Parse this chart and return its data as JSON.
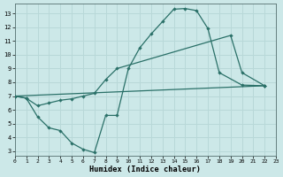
{
  "bg_color": "#cce8e8",
  "grid_color": "#b8d8d8",
  "line_color": "#2a7068",
  "xlabel": "Humidex (Indice chaleur)",
  "xlim": [
    0,
    23
  ],
  "ylim": [
    2.7,
    13.7
  ],
  "xticks": [
    0,
    1,
    2,
    3,
    4,
    5,
    6,
    7,
    8,
    9,
    10,
    11,
    12,
    13,
    14,
    15,
    16,
    17,
    18,
    19,
    20,
    21,
    22,
    23
  ],
  "yticks": [
    3,
    4,
    5,
    6,
    7,
    8,
    9,
    10,
    11,
    12,
    13
  ],
  "curve_dip": {
    "x": [
      0,
      1,
      2,
      3,
      4,
      5,
      6,
      7,
      8,
      9,
      10,
      11,
      12,
      13,
      14,
      15,
      16,
      17,
      18,
      20,
      22
    ],
    "y": [
      7.0,
      6.85,
      5.5,
      4.7,
      4.5,
      3.6,
      3.15,
      2.9,
      5.6,
      5.6,
      9.0,
      10.5,
      11.5,
      12.4,
      13.3,
      13.35,
      13.2,
      11.9,
      8.7,
      7.8,
      7.75
    ]
  },
  "curve_mid": {
    "x": [
      0,
      1,
      2,
      3,
      4,
      5,
      6,
      7,
      8,
      9,
      19,
      20,
      22
    ],
    "y": [
      7.0,
      6.85,
      6.3,
      6.5,
      6.7,
      6.8,
      7.0,
      7.2,
      8.2,
      9.0,
      11.4,
      8.7,
      7.75
    ]
  },
  "curve_flat": {
    "x": [
      0,
      22
    ],
    "y": [
      7.0,
      7.75
    ]
  }
}
